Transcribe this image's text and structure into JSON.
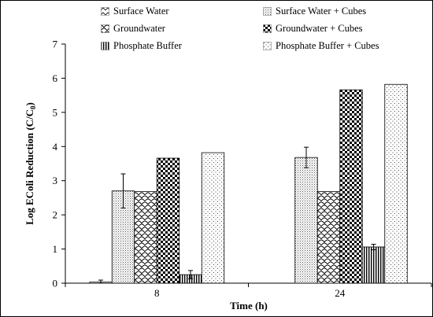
{
  "chart_data": {
    "type": "bar",
    "title": "",
    "xlabel": "Time (h)",
    "ylabel": "Log EColi Reduction (C/C0)",
    "ylabel_main": "Log EColi Reduction (C/C",
    "ylabel_sub": "0",
    "ylabel_close": ")",
    "ylim": [
      0,
      7
    ],
    "yticks": [
      "0",
      "1",
      "2",
      "3",
      "4",
      "5",
      "6",
      "7"
    ],
    "categories": [
      "8",
      "24"
    ],
    "grid": false,
    "legend_placement": "top",
    "series": [
      {
        "name": "Surface Water",
        "pattern": "wave-light",
        "values": [
          0.03,
          0.0
        ],
        "errors": [
          0.06,
          0.0
        ]
      },
      {
        "name": "Surface Water + Cubes",
        "pattern": "dots-gray",
        "values": [
          2.7,
          3.68
        ],
        "errors": [
          0.5,
          0.3
        ]
      },
      {
        "name": "Groundwater",
        "pattern": "scallop",
        "values": [
          2.68,
          2.68
        ],
        "errors": [
          0.0,
          0.0
        ]
      },
      {
        "name": "Groundwater + Cubes",
        "pattern": "checker",
        "values": [
          3.66,
          5.66
        ],
        "errors": [
          0.0,
          0.0
        ]
      },
      {
        "name": "Phosphate Buffer",
        "pattern": "vertical-lines",
        "values": [
          0.25,
          1.06
        ],
        "errors": [
          0.12,
          0.08
        ]
      },
      {
        "name": "Phosphate Buffer + Cubes",
        "pattern": "sparse-dots",
        "values": [
          3.82,
          5.82
        ],
        "errors": [
          0.0,
          0.0
        ]
      }
    ]
  }
}
